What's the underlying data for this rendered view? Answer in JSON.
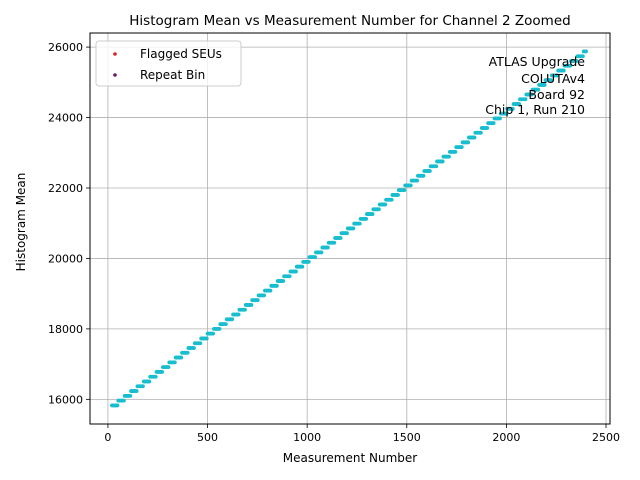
{
  "chart_data": {
    "type": "scatter",
    "title": "Histogram Mean vs Measurement Number for Channel 2 Zoomed",
    "xlabel": "Measurement Number",
    "ylabel": "Histogram Mean",
    "xlim": [
      -90,
      2520
    ],
    "ylim": [
      15300,
      26400
    ],
    "x_ticks": [
      0,
      500,
      1000,
      1500,
      2000,
      2500
    ],
    "y_ticks": [
      16000,
      18000,
      20000,
      22000,
      24000,
      26000
    ],
    "grid": true,
    "legend_position": "upper-left",
    "legend": [
      {
        "label": "Flagged SEUs",
        "color": "#d62728"
      },
      {
        "label": "Repeat Bin",
        "color": "#6a1b6a"
      }
    ],
    "annotation_lines": [
      "ATLAS Upgrade",
      "COLUTAv4",
      "Board 92",
      "Chip 1, Run 210"
    ],
    "series": [
      {
        "color": "#17becf",
        "x_range": [
          20,
          2400
        ],
        "y_range": [
          15780,
          25880
        ],
        "step_measurements": 32,
        "step_value": 136
      }
    ]
  }
}
